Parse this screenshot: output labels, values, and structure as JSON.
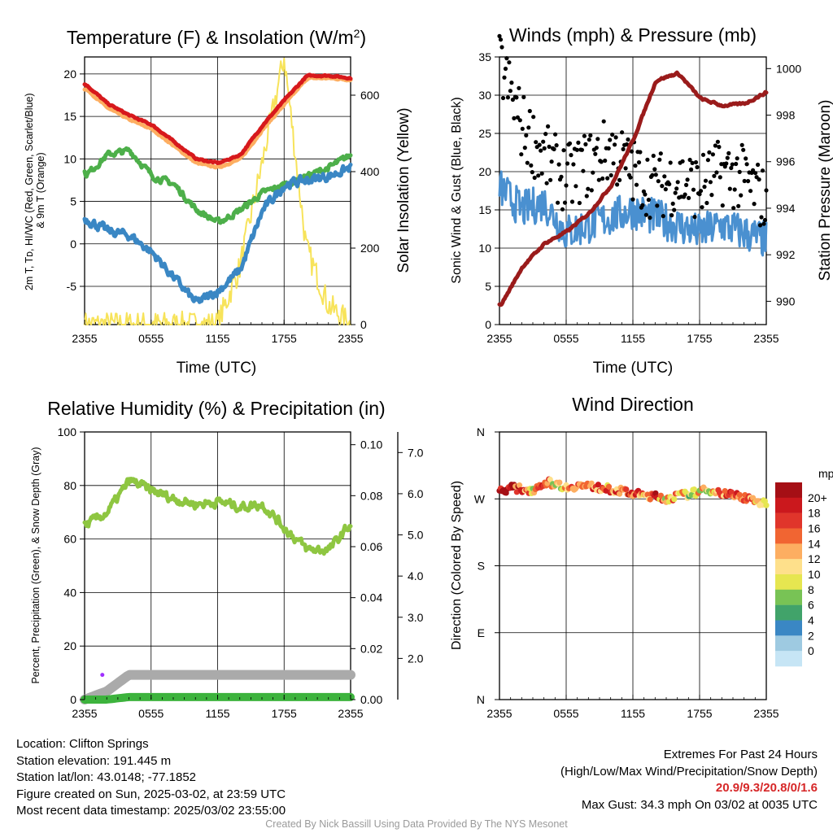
{
  "colors": {
    "temp_red": "#d7191c",
    "temp_orange": "#fdae61",
    "temp_green": "#4daf4a",
    "temp_blue": "#3a87c4",
    "insolation": "#f7e35a",
    "pressure": "#9a1b1b",
    "wind_blue": "#4a90d0",
    "gust": "#000000",
    "rh": "#8ec641",
    "precip": "#3db33d",
    "snow": "#aaaaaa"
  },
  "panels": {
    "temperature": {
      "title": "Temperature (F) & Insolation (W/m²)",
      "ylabel_lines": [
        "2m T, Tᴅ, HI/WC (Red, Green, Scarlet/Blue)",
        "& 9m T (Orange)"
      ],
      "ylabel_right": "Solar Insolation (Yellow)",
      "xlabel": "Time (UTC)"
    },
    "winds": {
      "title": "Winds (mph) & Pressure (mb)",
      "ylabel": "Sonic Wind & Gust (Blue, Black)",
      "ylabel_right": "Station Pressure (Maroon)",
      "xlabel": "Time (UTC)"
    },
    "humidity": {
      "title": "Relative Humidity (%) & Precipitation (in)",
      "ylabel": "Percent, Precipitation (Green), & Snow Depth (Gray)"
    },
    "direction": {
      "title": "Wind Direction",
      "ylabel": "Direction (Colored By Speed)",
      "colorbar": {
        "unit": "mph",
        "labels": [
          "20+",
          "18",
          "16",
          "14",
          "12",
          "10",
          "8",
          "6",
          "4",
          "2",
          "0"
        ],
        "colors": [
          "#a50f15",
          "#cb181d",
          "#e0352b",
          "#f16532",
          "#fdae61",
          "#fee08b",
          "#e6e650",
          "#78c355",
          "#41a36a",
          "#3a87c4",
          "#9ecae1",
          "#c6e5f5"
        ]
      }
    }
  },
  "meta": {
    "location": "Location: Clifton Springs",
    "elevation": "Station elevation: 191.445 m",
    "latlon": "Station lat/lon: 43.0148; -77.1852",
    "created": "Figure created on Sun, 2025-03-02, at 23:59 UTC",
    "recent": "Most recent data timestamp: 2025/03/02 23:55:00",
    "extremes_title": "Extremes For Past 24 Hours",
    "extremes_sub": "(High/Low/Max Wind/Precipitation/Snow Depth)",
    "extremes_values": "20.9/9.3/20.8/0/1.6",
    "max_gust": "Max Gust: 34.3 mph On 03/02 at 0035 UTC",
    "credit": "Created By Nick Bassill Using Data Provided By The NYS Mesonet"
  },
  "chart_data": [
    {
      "type": "line",
      "title": "Temperature (F) & Insolation (W/m²)",
      "xlabel": "Time (UTC)",
      "ylabel": "2m T, Tᴅ, HI/WC (Red, Green, Scarlet/Blue) & 9m T (Orange)",
      "ylabel_right": "Solar Insolation (Yellow)",
      "x": [
        0,
        2,
        4,
        6,
        8,
        10,
        12,
        14,
        16,
        18,
        20,
        22,
        24
      ],
      "x_ticks": [
        "2355",
        "0555",
        "1155",
        "1755",
        "2355"
      ],
      "ylim": [
        -9.5,
        22
      ],
      "yticks": [
        -5,
        0,
        5,
        10,
        15,
        20
      ],
      "ylim_right": [
        0,
        700
      ],
      "yticks_right": [
        0,
        200,
        400,
        600
      ],
      "series": [
        {
          "name": "2m Temperature",
          "color": "red",
          "values": [
            18.8,
            16.5,
            15.1,
            14.0,
            12.0,
            10.0,
            9.5,
            10.5,
            14.0,
            17.0,
            19.8,
            19.8,
            19.5
          ]
        },
        {
          "name": "9m Temperature",
          "color": "orange",
          "values": [
            18.3,
            16.0,
            14.6,
            13.5,
            11.5,
            9.5,
            9.0,
            10.0,
            13.5,
            16.5,
            19.5,
            19.5,
            19.3
          ]
        },
        {
          "name": "Dew Point",
          "color": "green",
          "values": [
            8.0,
            10.5,
            11.0,
            8.0,
            7.0,
            4.0,
            2.5,
            4.0,
            6.0,
            7.0,
            8.0,
            9.0,
            10.5
          ]
        },
        {
          "name": "Wind Chill",
          "color": "blue",
          "values": [
            3.0,
            1.5,
            1.0,
            -1.0,
            -4.0,
            -7.0,
            -5.5,
            -3.0,
            4.0,
            7.0,
            7.5,
            8.0,
            9.0
          ]
        },
        {
          "name": "Solar Insolation",
          "axis": "right",
          "color": "yellow",
          "values": [
            0,
            0,
            0,
            0,
            0,
            0,
            0,
            150,
            420,
            700,
            200,
            50,
            0
          ]
        }
      ]
    },
    {
      "type": "line",
      "title": "Winds (mph) & Pressure (mb)",
      "xlabel": "Time (UTC)",
      "ylabel": "Sonic Wind & Gust (Blue, Black)",
      "ylabel_right": "Station Pressure (Maroon)",
      "x": [
        0,
        2,
        4,
        6,
        8,
        10,
        12,
        14,
        16,
        18,
        20,
        22,
        24
      ],
      "x_ticks": [
        "2355",
        "0555",
        "1155",
        "1755",
        "2355"
      ],
      "ylim": [
        0,
        35
      ],
      "yticks": [
        0,
        5,
        10,
        15,
        20,
        25,
        30,
        35
      ],
      "ylim_right": [
        989,
        1000.5
      ],
      "yticks_right": [
        990,
        992,
        994,
        996,
        998,
        1000
      ],
      "series": [
        {
          "name": "Sonic Wind",
          "color": "blue",
          "values": [
            18,
            15,
            16,
            12,
            13,
            14,
            15,
            14,
            13,
            12,
            13,
            12,
            11
          ]
        },
        {
          "name": "Gust",
          "color": "black",
          "style": "points",
          "values": [
            34.3,
            26,
            22,
            19,
            21,
            23,
            20,
            18,
            19,
            18,
            20,
            19,
            16
          ]
        },
        {
          "name": "Station Pressure",
          "axis": "right",
          "color": "maroon",
          "values": [
            989.8,
            991.5,
            992.5,
            993.0,
            993.8,
            995.0,
            997.0,
            999.5,
            999.8,
            998.7,
            998.4,
            998.5,
            999.0
          ]
        }
      ]
    },
    {
      "type": "line",
      "title": "Relative Humidity (%) & Precipitation (in)",
      "ylabel": "Percent, Precipitation (Green), & Snow Depth (Gray)",
      "x": [
        0,
        2,
        4,
        6,
        8,
        10,
        12,
        14,
        16,
        18,
        20,
        22,
        24
      ],
      "x_ticks": [
        "2355",
        "0555",
        "1155",
        "1755",
        "2355"
      ],
      "ylim": [
        0,
        100
      ],
      "yticks": [
        0,
        20,
        40,
        60,
        80,
        100
      ],
      "ylim_precip": [
        0,
        0.105
      ],
      "yticks_precip": [
        "0.00",
        "0.02",
        "0.04",
        "0.06",
        "0.08",
        "0.10"
      ],
      "ylim_snow": [
        1.0,
        7.5
      ],
      "yticks_snow": [
        "2.0",
        "3.0",
        "4.0",
        "5.0",
        "6.0",
        "7.0"
      ],
      "series": [
        {
          "name": "Relative Humidity",
          "color": "green",
          "values": [
            65,
            70,
            82,
            78,
            75,
            73,
            74,
            72,
            73,
            64,
            56,
            56,
            66
          ]
        },
        {
          "name": "Precipitation",
          "color": "green",
          "values": [
            0,
            0,
            0.001,
            0.001,
            0.001,
            0.001,
            0.001,
            0.001,
            0.001,
            0.001,
            0.001,
            0.001,
            0.001
          ]
        },
        {
          "name": "Snow Depth",
          "color": "gray",
          "values": [
            1.0,
            1.2,
            1.6,
            1.6,
            1.6,
            1.6,
            1.6,
            1.6,
            1.6,
            1.6,
            1.6,
            1.6,
            1.6
          ]
        }
      ]
    },
    {
      "type": "scatter",
      "title": "Wind Direction",
      "ylabel": "Direction (Colored By Speed)",
      "x": [
        0,
        1,
        2,
        3,
        4,
        5,
        6,
        7,
        8,
        9,
        10,
        11,
        12,
        13,
        14,
        15,
        16,
        17,
        18,
        19,
        20,
        21,
        22,
        23,
        24
      ],
      "x_ticks": [
        "2355",
        "0555",
        "1155",
        "1755",
        "2355"
      ],
      "y_ticks": [
        "N",
        "W",
        "S",
        "E",
        "N"
      ],
      "ylim": [
        0,
        360
      ],
      "direction_degrees": [
        280,
        285,
        283,
        282,
        292,
        291,
        285,
        288,
        287,
        285,
        283,
        280,
        277,
        275,
        273,
        270,
        274,
        276,
        280,
        282,
        278,
        275,
        272,
        268,
        262
      ],
      "speed_mph": [
        18,
        20,
        16,
        12,
        14,
        10,
        12,
        13,
        15,
        14,
        14,
        16,
        18,
        14,
        16,
        12,
        14,
        8,
        12,
        10,
        16,
        14,
        16,
        12,
        10
      ]
    }
  ]
}
